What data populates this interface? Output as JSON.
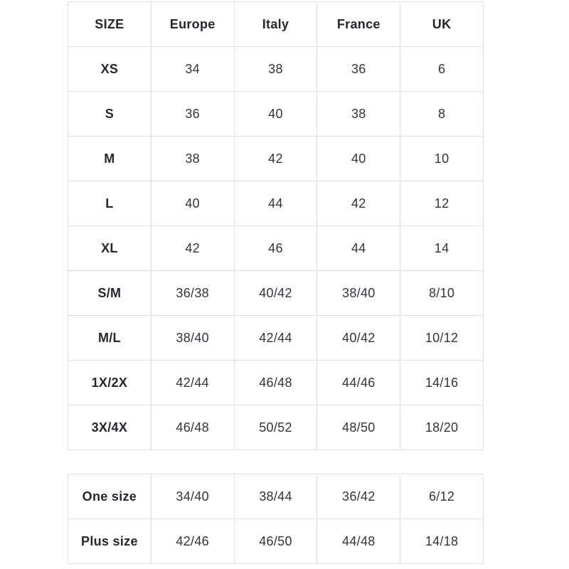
{
  "chart_data": [
    {
      "type": "table",
      "name": "size-conversion-main",
      "columns": [
        "SIZE",
        "Europe",
        "Italy",
        "France",
        "UK"
      ],
      "rows": [
        [
          "XS",
          "34",
          "38",
          "36",
          "6"
        ],
        [
          "S",
          "36",
          "40",
          "38",
          "8"
        ],
        [
          "M",
          "38",
          "42",
          "40",
          "10"
        ],
        [
          "L",
          "40",
          "44",
          "42",
          "12"
        ],
        [
          "XL",
          "42",
          "46",
          "44",
          "14"
        ],
        [
          "S/M",
          "36/38",
          "40/42",
          "38/40",
          "8/10"
        ],
        [
          "M/L",
          "38/40",
          "42/44",
          "40/42",
          "10/12"
        ],
        [
          "1X/2X",
          "42/44",
          "46/48",
          "44/46",
          "14/16"
        ],
        [
          "3X/4X",
          "46/48",
          "50/52",
          "48/50",
          "18/20"
        ]
      ],
      "layout": {
        "grid": true,
        "header_row": true,
        "bold_first_column": true
      }
    },
    {
      "type": "table",
      "name": "size-conversion-extra",
      "columns": [],
      "rows": [
        [
          "One size",
          "34/40",
          "38/44",
          "36/42",
          "6/12"
        ],
        [
          "Plus size",
          "42/46",
          "46/50",
          "44/48",
          "14/18"
        ]
      ],
      "layout": {
        "grid": true,
        "header_row": false,
        "bold_first_column": true
      }
    }
  ],
  "colors": {
    "background": "#ffffff",
    "border": "#e0e0e0",
    "text": "#34343c",
    "label_text": "#26262e"
  }
}
